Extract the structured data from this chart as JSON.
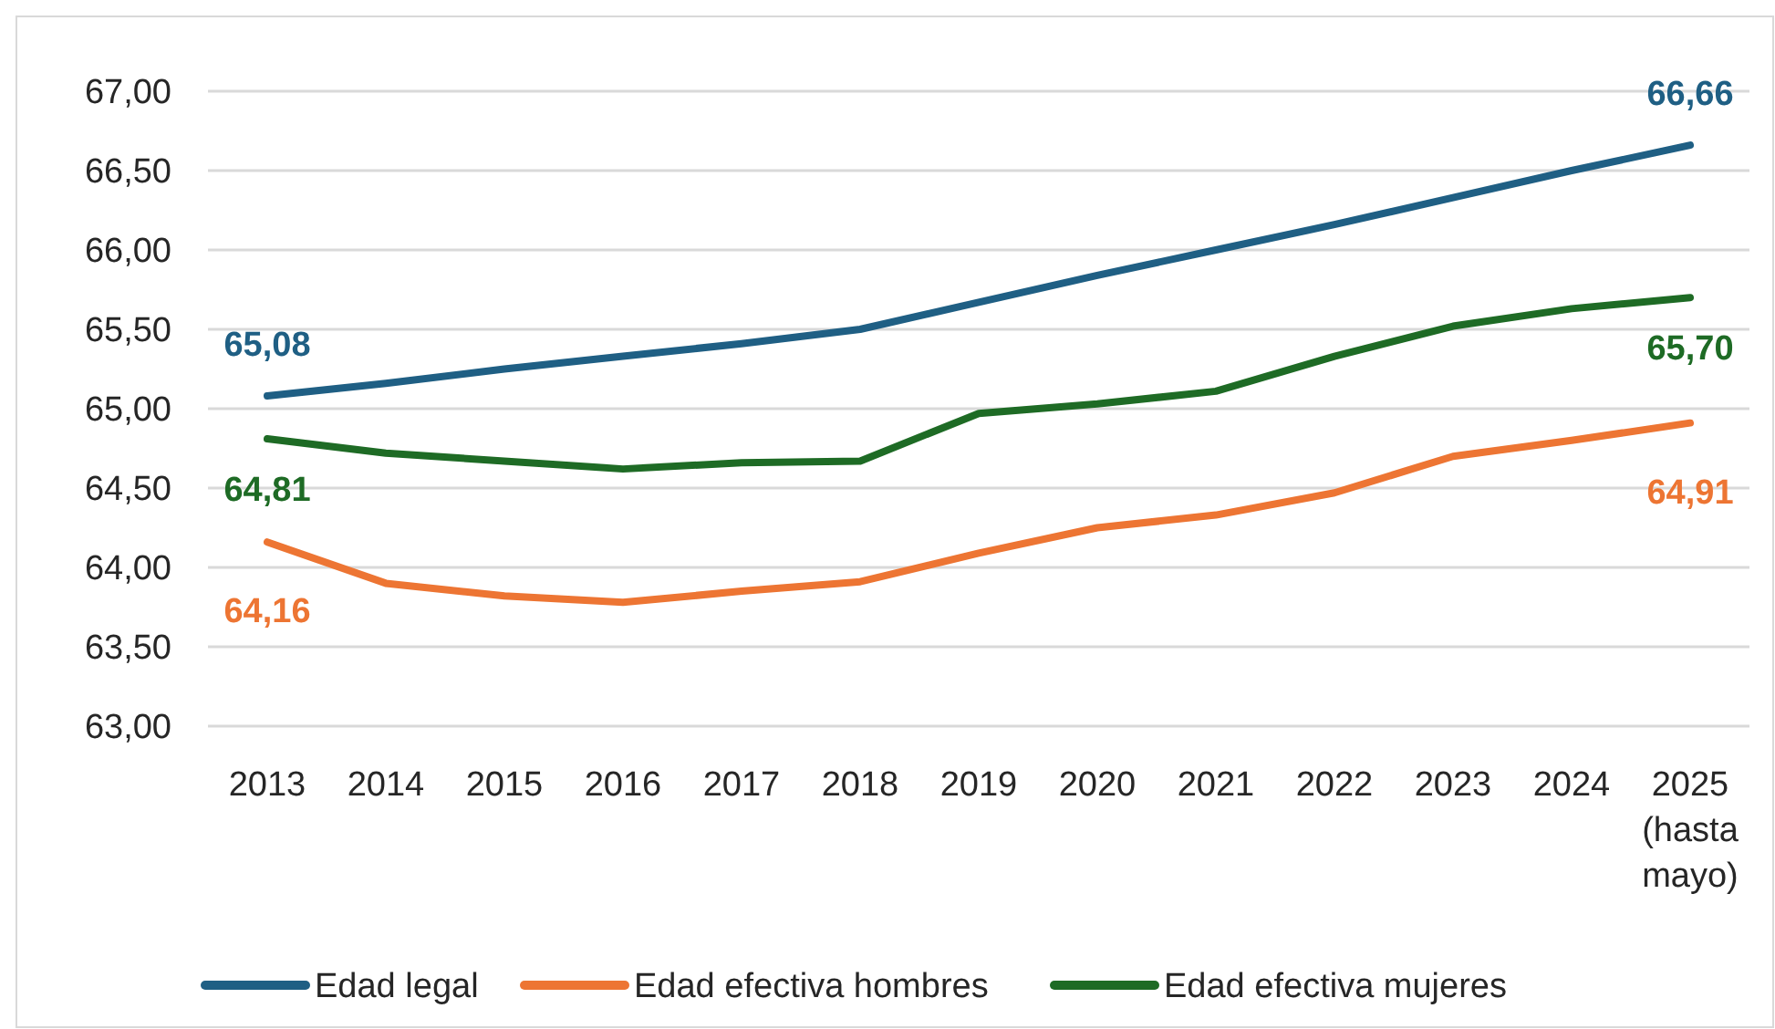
{
  "chart_data": {
    "type": "line",
    "categories": [
      "2013",
      "2014",
      "2015",
      "2016",
      "2017",
      "2018",
      "2019",
      "2020",
      "2021",
      "2022",
      "2023",
      "2024",
      "2025 (hasta mayo)"
    ],
    "series": [
      {
        "name": "Edad legal",
        "color": "#1f5f84",
        "values": [
          65.08,
          65.16,
          65.25,
          65.33,
          65.41,
          65.5,
          65.67,
          65.84,
          66.0,
          66.16,
          66.33,
          66.5,
          66.66
        ],
        "value_labels": [
          "65,08",
          null,
          null,
          null,
          null,
          null,
          null,
          null,
          null,
          null,
          null,
          null,
          "66,66"
        ]
      },
      {
        "name": "Edad efectiva hombres",
        "color": "#ed7533",
        "values": [
          64.16,
          63.9,
          63.82,
          63.78,
          63.85,
          63.91,
          64.09,
          64.25,
          64.33,
          64.47,
          64.7,
          64.8,
          64.91
        ],
        "value_labels": [
          "64,16",
          null,
          null,
          null,
          null,
          null,
          null,
          null,
          null,
          null,
          null,
          null,
          "64,91"
        ]
      },
      {
        "name": "Edad efectiva mujeres",
        "color": "#1e6b25",
        "values": [
          64.81,
          64.72,
          64.67,
          64.62,
          64.66,
          64.67,
          64.97,
          65.03,
          65.11,
          65.33,
          65.52,
          65.63,
          65.7
        ],
        "value_labels": [
          "64,81",
          null,
          null,
          null,
          null,
          null,
          null,
          null,
          null,
          null,
          null,
          null,
          "65,70"
        ]
      }
    ],
    "ylim": [
      63,
      67
    ],
    "yticks": [
      {
        "value": 63,
        "label": "63,00"
      },
      {
        "value": 63.5,
        "label": "63,50"
      },
      {
        "value": 64,
        "label": "64,00"
      },
      {
        "value": 64.5,
        "label": "64,50"
      },
      {
        "value": 65,
        "label": "65,00"
      },
      {
        "value": 65.5,
        "label": "65,50"
      },
      {
        "value": 66,
        "label": "66,00"
      },
      {
        "value": 66.5,
        "label": "66,50"
      },
      {
        "value": 67,
        "label": "67,00"
      }
    ],
    "grid": "y",
    "legend": "bottom",
    "marker": "none",
    "line_style": "solid"
  }
}
